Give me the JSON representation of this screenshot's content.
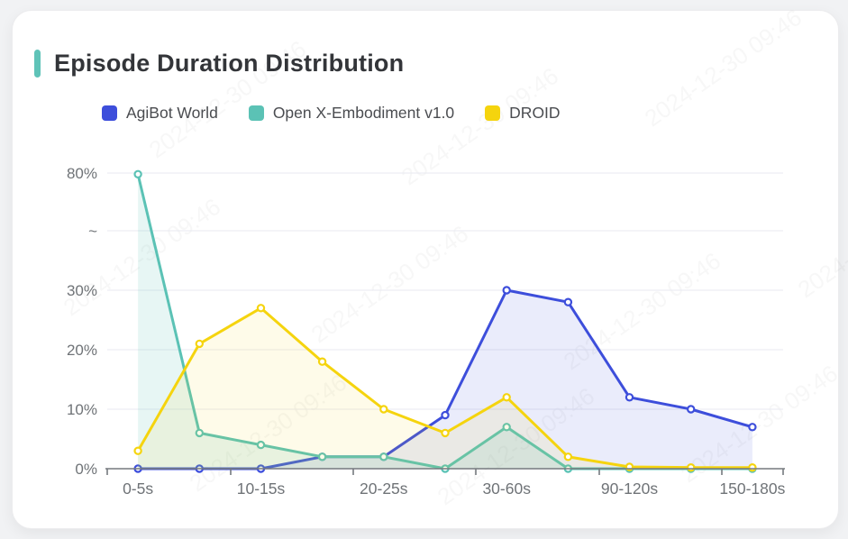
{
  "card": {
    "title": "Episode Duration Distribution"
  },
  "watermark": {
    "text": "2024-12-30 09:46"
  },
  "chart_data": {
    "type": "line",
    "title": "Episode Duration Distribution",
    "categories": [
      "0-5s",
      "",
      "10-15s",
      "",
      "20-25s",
      "",
      "30-60s",
      "",
      "90-120s",
      "",
      "150-180s"
    ],
    "series": [
      {
        "name": "AgiBot World",
        "color": "#3d4edb",
        "values": [
          0,
          0,
          0,
          2,
          2,
          9,
          30,
          28,
          12,
          10,
          7
        ]
      },
      {
        "name": "Open X-Embodiment v1.0",
        "color": "#5bc2b5",
        "values": [
          79.5,
          6,
          4,
          2,
          2,
          0,
          7,
          0,
          0,
          0,
          0
        ]
      },
      {
        "name": "DROID",
        "color": "#f5d40e",
        "values": [
          3,
          21,
          27,
          18,
          10,
          6,
          12,
          2,
          0.3,
          0.2,
          0.2
        ]
      }
    ],
    "y_axis": {
      "tick_labels": [
        "80%",
        "~",
        "30%",
        "20%",
        "10%",
        "0%"
      ],
      "broken_axis": true,
      "ylim_lower_section": [
        0,
        30
      ],
      "upper_label": 80
    },
    "x_axis": {
      "unit": "seconds",
      "labels_shown": [
        "0-5s",
        "10-15s",
        "20-25s",
        "30-60s",
        "90-120s",
        "150-180s"
      ]
    },
    "legend_position": "top-left",
    "grid": true,
    "marker_style": "hollow-circle",
    "colors": {
      "grid_line": "#e8eaf1",
      "axis_line": "#75797e",
      "tick_label": "#6f7377",
      "title_text": "#333539",
      "accent_bar": "#5fc3b8"
    }
  }
}
